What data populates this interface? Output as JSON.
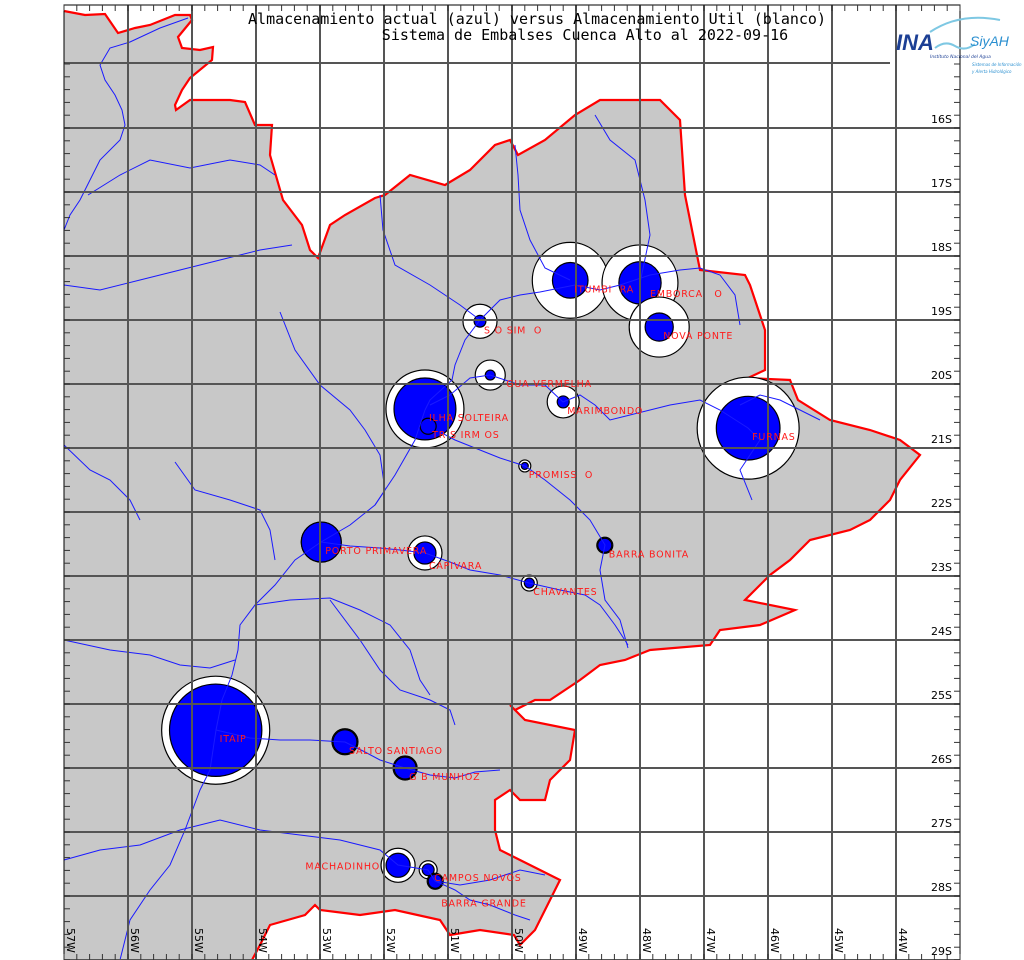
{
  "title": {
    "line1": "Almacenamiento actual (azul) versus Almacenamiento Util (blanco)",
    "line2": "Sistema de Embalses Cuenca Alto al 2022-09-16"
  },
  "logo": {
    "ina": "INA",
    "siyah": "SiyAH",
    "institute": "Instituto Nacional del Agua",
    "system_line1": "Sistemas de Información",
    "system_line2": "y Alerta Hidrológico"
  },
  "colors": {
    "land": "#c8c8c8",
    "border": "#ff0000",
    "river": "#1a1aff",
    "actual": "#0000ff",
    "util": "#ffffff",
    "label": "#ff1a1a"
  },
  "axes": {
    "lon_labels": [
      "57W",
      "56W",
      "55W",
      "54W",
      "53W",
      "52W",
      "51W",
      "50W",
      "49W",
      "48W",
      "47W",
      "46W",
      "45W",
      "44W"
    ],
    "lon_values": [
      57,
      56,
      55,
      54,
      53,
      52,
      51,
      50,
      49,
      48,
      47,
      46,
      45,
      44
    ],
    "lat_labels": [
      "16S",
      "17S",
      "18S",
      "19S",
      "20S",
      "21S",
      "22S",
      "23S",
      "24S",
      "25S",
      "26S",
      "27S",
      "28S",
      "29S"
    ],
    "lat_values": [
      16,
      17,
      18,
      19,
      20,
      21,
      22,
      23,
      24,
      25,
      26,
      27,
      28,
      29
    ]
  },
  "reservoirs": [
    {
      "label": "ITUMBI  RA",
      "lon": 49.09,
      "lat": 18.38,
      "util_rel": 14.4,
      "actual_frac": 0.22
    },
    {
      "label": "EMBORCA   O",
      "lon": 48.0,
      "lat": 18.42,
      "util_rel": 14.4,
      "actual_frac": 0.31
    },
    {
      "label": "NOVA PONTE",
      "lon": 47.7,
      "lat": 19.11,
      "util_rel": 9.0,
      "actual_frac": 0.22
    },
    {
      "label": "S O SIM  O",
      "lon": 50.5,
      "lat": 19.02,
      "util_rel": 2.9,
      "actual_frac": 0.12
    },
    {
      "label": "GUA VERMELHA",
      "lon": 50.34,
      "lat": 19.86,
      "util_rel": 2.25,
      "actual_frac": 0.11
    },
    {
      "label": "ILHA SOLTEIRA",
      "lon": 51.36,
      "lat": 20.39,
      "util_rel": 15.2,
      "actual_frac": 0.63
    },
    {
      "label": "TR S IRM OS",
      "lon": 51.31,
      "lat": 20.66,
      "util_rel": 0.64,
      "actual_frac": 0.0
    },
    {
      "label": "MARIMBONDO",
      "lon": 49.2,
      "lat": 20.28,
      "util_rel": 2.56,
      "actual_frac": 0.14
    },
    {
      "label": "FURNAS",
      "lon": 46.31,
      "lat": 20.69,
      "util_rel": 26.0,
      "actual_frac": 0.39
    },
    {
      "label": "PROMISS  O",
      "lon": 49.8,
      "lat": 21.28,
      "util_rel": 0.36,
      "actual_frac": 0.34
    },
    {
      "label": "PORTO PRIMAVERA",
      "lon": 52.98,
      "lat": 22.47,
      "util_rel": 4.0,
      "actual_frac": 1.0
    },
    {
      "label": "CAPIVARA",
      "lon": 51.36,
      "lat": 22.64,
      "util_rel": 2.9,
      "actual_frac": 0.42
    },
    {
      "label": "CHAVANTES",
      "lon": 49.73,
      "lat": 23.11,
      "util_rel": 0.64,
      "actual_frac": 0.39
    },
    {
      "label": "BARRA BONITA",
      "lon": 48.55,
      "lat": 22.52,
      "util_rel": 0.64,
      "actual_frac": 0.77
    },
    {
      "label": "ITAIP",
      "lon": 54.63,
      "lat": 25.41,
      "util_rel": 29.2,
      "actual_frac": 0.73
    },
    {
      "label": "SALTO SANTIAGO",
      "lon": 52.61,
      "lat": 25.59,
      "util_rel": 1.69,
      "actual_frac": 0.85
    },
    {
      "label": "G B MUNHOZ",
      "lon": 51.67,
      "lat": 26.0,
      "util_rel": 1.44,
      "actual_frac": 0.84
    },
    {
      "label": "MACHADINHO",
      "lon": 51.78,
      "lat": 27.52,
      "util_rel": 2.9,
      "actual_frac": 0.5
    },
    {
      "label": "CAMPOS NOVOS",
      "lon": 51.31,
      "lat": 27.59,
      "util_rel": 0.81,
      "actual_frac": 0.44
    },
    {
      "label": "BARRA GRANDE",
      "lon": 51.2,
      "lat": 27.77,
      "util_rel": 0.64,
      "actual_frac": 0.77
    }
  ]
}
